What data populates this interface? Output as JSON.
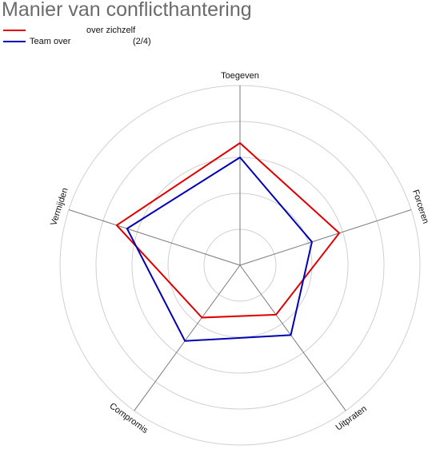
{
  "chart_data": {
    "type": "radar",
    "title": "Manier van conflicthantering",
    "axes": [
      "Forceren",
      "Uitpraten",
      "Compromis",
      "Vermijden",
      "Toegeven"
    ],
    "rings": 5,
    "rmax": 5,
    "series": [
      {
        "name": "",
        "legend_parts": [
          "",
          "over zichzelf"
        ],
        "color": "#e00000",
        "values": [
          2.9,
          1.7,
          1.8,
          3.6,
          3.4
        ]
      },
      {
        "name": "Team over",
        "legend_parts": [
          "Team over",
          "(2/4)"
        ],
        "color": "#0000b4",
        "values": [
          2.1,
          2.4,
          2.6,
          3.3,
          3.0
        ]
      }
    ],
    "legend_position": "top-left",
    "grid": true
  }
}
